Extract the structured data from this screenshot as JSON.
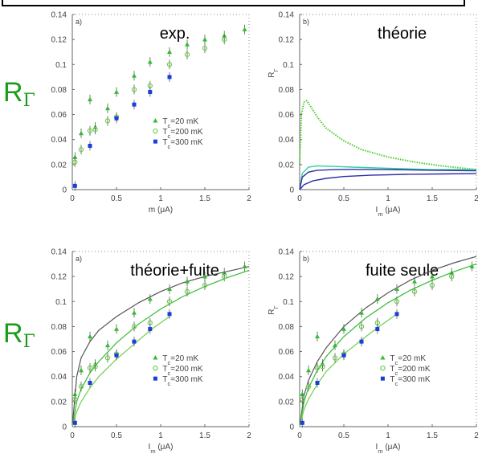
{
  "side_labels": {
    "top": "R",
    "bottom": "R",
    "subscript": "Γ"
  },
  "chart_data": [
    {
      "type": "scatter",
      "panel_letter": "a)",
      "title": "exp.",
      "xlabel": "m (μA)",
      "ylabel": "",
      "xlim": [
        0,
        2
      ],
      "ylim": [
        0,
        0.14
      ],
      "xticks": [
        "0",
        "0.5",
        "1",
        "1.5",
        "2"
      ],
      "yticks": [
        "0",
        "0.02",
        "0.04",
        "0.06",
        "0.08",
        "0.1",
        "0.12",
        "0.14"
      ],
      "legend": {
        "position": "center-right",
        "entries": [
          "T_c=20 mK",
          "T_c=200 mK",
          "T_c=300 mK"
        ]
      },
      "colors": [
        "#33bb33",
        "#6fcf4f",
        "#1a3fd6"
      ],
      "series": [
        {
          "name": "T_c=20 mK",
          "marker": "triangle",
          "x": [
            0.03,
            0.1,
            0.2,
            0.26,
            0.4,
            0.5,
            0.7,
            0.88,
            1.1,
            1.3,
            1.5,
            1.72,
            1.95
          ],
          "y": [
            0.026,
            0.045,
            0.072,
            0.05,
            0.065,
            0.078,
            0.091,
            0.102,
            0.11,
            0.116,
            0.12,
            0.123,
            0.128
          ]
        },
        {
          "name": "T_c=200 mK",
          "marker": "circle",
          "x": [
            0.03,
            0.1,
            0.2,
            0.26,
            0.4,
            0.5,
            0.7,
            0.88,
            1.1,
            1.3,
            1.5,
            1.72
          ],
          "y": [
            0.022,
            0.032,
            0.047,
            0.048,
            0.055,
            0.058,
            0.08,
            0.083,
            0.1,
            0.108,
            0.113,
            0.12
          ]
        },
        {
          "name": "T_c=300 mK",
          "marker": "square",
          "x": [
            0.03,
            0.2,
            0.5,
            0.7,
            0.88,
            1.1
          ],
          "y": [
            0.003,
            0.035,
            0.057,
            0.068,
            0.078,
            0.09
          ]
        }
      ]
    },
    {
      "type": "line",
      "panel_letter": "b)",
      "title": "théorie",
      "xlabel": "I_m (μA)",
      "ylabel": "R_Γ",
      "xlim": [
        0,
        2
      ],
      "ylim": [
        0,
        0.14
      ],
      "xticks": [
        "0",
        "0.5",
        "1",
        "1.5",
        "2"
      ],
      "yticks": [
        "0",
        "0.02",
        "0.04",
        "0.06",
        "0.08",
        "0.1",
        "0.12",
        "0.14"
      ],
      "colors": [
        "#4fcc2f",
        "#2fcfa0",
        "#2d2ea8"
      ],
      "series": [
        {
          "name": "T_c=20 mK",
          "style": "dotted",
          "x": [
            0,
            0.02,
            0.05,
            0.08,
            0.12,
            0.2,
            0.3,
            0.5,
            0.7,
            1.0,
            1.3,
            1.6,
            2.0
          ],
          "y": [
            0.02,
            0.06,
            0.07,
            0.071,
            0.067,
            0.058,
            0.049,
            0.039,
            0.032,
            0.026,
            0.022,
            0.019,
            0.016
          ]
        },
        {
          "name": "T_c=20 mK",
          "style": "solid",
          "x": [
            0,
            0.03,
            0.1,
            0.2,
            0.4,
            0.6,
            1.0,
            1.5,
            2.0
          ],
          "y": [
            0.0,
            0.013,
            0.018,
            0.019,
            0.0185,
            0.018,
            0.017,
            0.016,
            0.016
          ]
        },
        {
          "name": "T_c=200 mK",
          "style": "solid",
          "x": [
            0,
            0.03,
            0.1,
            0.2,
            0.4,
            0.6,
            1.0,
            1.5,
            2.0
          ],
          "y": [
            0.0,
            0.01,
            0.014,
            0.0155,
            0.016,
            0.0162,
            0.016,
            0.0155,
            0.015
          ]
        },
        {
          "name": "T_c=300 mK",
          "style": "solid",
          "x": [
            0,
            0.05,
            0.15,
            0.3,
            0.5,
            0.8,
            1.2,
            1.6,
            2.0
          ],
          "y": [
            0.0,
            0.004,
            0.007,
            0.009,
            0.0105,
            0.0115,
            0.0122,
            0.0125,
            0.0128
          ]
        }
      ]
    },
    {
      "type": "scatter",
      "panel_letter": "a)",
      "title": "théorie+fuite",
      "xlabel": "I_m (μA)",
      "ylabel": "",
      "xlim": [
        0,
        2
      ],
      "ylim": [
        0,
        0.14
      ],
      "xticks": [
        "0",
        "0.5",
        "1",
        "1.5",
        "2"
      ],
      "yticks": [
        "0",
        "0.02",
        "0.04",
        "0.06",
        "0.08",
        "0.1",
        "0.12",
        "0.14"
      ],
      "legend": {
        "position": "center-right",
        "entries": [
          "T_c=20 mK",
          "T_c=200 mK",
          "T_c=300 mK"
        ]
      },
      "colors": [
        "#33bb33",
        "#6fcf4f",
        "#1a3fd6"
      ],
      "series": [
        {
          "name": "T_c=20 mK",
          "marker": "triangle",
          "x": [
            0.03,
            0.1,
            0.2,
            0.26,
            0.4,
            0.5,
            0.7,
            0.88,
            1.1,
            1.3,
            1.5,
            1.72,
            1.95
          ],
          "y": [
            0.026,
            0.045,
            0.072,
            0.05,
            0.065,
            0.078,
            0.091,
            0.102,
            0.11,
            0.116,
            0.12,
            0.123,
            0.128
          ]
        },
        {
          "name": "T_c=200 mK",
          "marker": "circle",
          "x": [
            0.03,
            0.1,
            0.2,
            0.26,
            0.4,
            0.5,
            0.7,
            0.88,
            1.1,
            1.3,
            1.5,
            1.72
          ],
          "y": [
            0.022,
            0.032,
            0.047,
            0.048,
            0.055,
            0.058,
            0.08,
            0.083,
            0.1,
            0.108,
            0.113,
            0.12
          ]
        },
        {
          "name": "T_c=300 mK",
          "marker": "square",
          "x": [
            0.03,
            0.2,
            0.5,
            0.7,
            0.88,
            1.1
          ],
          "y": [
            0.003,
            0.035,
            0.057,
            0.068,
            0.078,
            0.09
          ]
        }
      ],
      "curves": [
        {
          "color": "#555555",
          "x": [
            0,
            0.05,
            0.1,
            0.2,
            0.3,
            0.5,
            0.75,
            1.0,
            1.25,
            1.5,
            1.75,
            2.0
          ],
          "y": [
            0.0,
            0.04,
            0.055,
            0.068,
            0.077,
            0.088,
            0.099,
            0.108,
            0.115,
            0.12,
            0.124,
            0.128
          ]
        },
        {
          "color": "#33bb33",
          "x": [
            0,
            0.05,
            0.1,
            0.2,
            0.3,
            0.5,
            0.75,
            1.0,
            1.25,
            1.5,
            1.75,
            2.0
          ],
          "y": [
            0.0,
            0.02,
            0.03,
            0.043,
            0.052,
            0.067,
            0.082,
            0.094,
            0.104,
            0.112,
            0.119,
            0.125
          ]
        },
        {
          "color": "#6fcf4f",
          "x": [
            0,
            0.05,
            0.1,
            0.2,
            0.3,
            0.5,
            0.75,
            0.9,
            1.1
          ],
          "y": [
            0.0,
            0.012,
            0.02,
            0.031,
            0.04,
            0.054,
            0.069,
            0.078,
            0.088
          ]
        }
      ]
    },
    {
      "type": "scatter",
      "panel_letter": "b)",
      "title": "fuite seule",
      "xlabel": "I_m (μA)",
      "ylabel": "R_Γ",
      "xlim": [
        0,
        2
      ],
      "ylim": [
        0,
        0.14
      ],
      "xticks": [
        "0",
        "0.5",
        "1",
        "1.5",
        "2"
      ],
      "yticks": [
        "0",
        "0.02",
        "0.04",
        "0.06",
        "0.08",
        "0.1",
        "0.12",
        "0.14"
      ],
      "legend": {
        "position": "center-right",
        "entries": [
          "T_c=20 mK",
          "T_c=200 mK",
          "T_c=300 mK"
        ]
      },
      "colors": [
        "#33bb33",
        "#6fcf4f",
        "#1a3fd6"
      ],
      "series": [
        {
          "name": "T_c=20 mK",
          "marker": "triangle",
          "x": [
            0.03,
            0.1,
            0.2,
            0.26,
            0.4,
            0.5,
            0.7,
            0.88,
            1.1,
            1.3,
            1.5,
            1.72,
            1.95
          ],
          "y": [
            0.026,
            0.045,
            0.072,
            0.05,
            0.065,
            0.078,
            0.091,
            0.102,
            0.11,
            0.116,
            0.12,
            0.123,
            0.128
          ]
        },
        {
          "name": "T_c=200 mK",
          "marker": "circle",
          "x": [
            0.03,
            0.1,
            0.2,
            0.26,
            0.4,
            0.5,
            0.7,
            0.88,
            1.1,
            1.3,
            1.5,
            1.72
          ],
          "y": [
            0.022,
            0.032,
            0.047,
            0.048,
            0.055,
            0.058,
            0.08,
            0.083,
            0.1,
            0.108,
            0.113,
            0.12
          ]
        },
        {
          "name": "T_c=300 mK",
          "marker": "square",
          "x": [
            0.03,
            0.2,
            0.5,
            0.7,
            0.88,
            1.1
          ],
          "y": [
            0.003,
            0.035,
            0.057,
            0.068,
            0.078,
            0.09
          ]
        }
      ],
      "curves": [
        {
          "color": "#555555",
          "x": [
            0,
            0.05,
            0.1,
            0.2,
            0.3,
            0.5,
            0.75,
            1.0,
            1.25,
            1.5,
            1.75,
            2.0
          ],
          "y": [
            0.0,
            0.025,
            0.037,
            0.052,
            0.063,
            0.08,
            0.095,
            0.107,
            0.117,
            0.125,
            0.131,
            0.136
          ]
        },
        {
          "color": "#33bb33",
          "x": [
            0,
            0.05,
            0.1,
            0.2,
            0.3,
            0.5,
            0.75,
            1.0,
            1.25,
            1.5,
            1.75,
            2.0
          ],
          "y": [
            0.0,
            0.02,
            0.031,
            0.045,
            0.056,
            0.072,
            0.087,
            0.099,
            0.109,
            0.117,
            0.124,
            0.13
          ]
        },
        {
          "color": "#6fcf4f",
          "x": [
            0,
            0.05,
            0.1,
            0.2,
            0.3,
            0.5,
            0.75,
            0.9,
            1.1
          ],
          "y": [
            0.0,
            0.014,
            0.022,
            0.034,
            0.044,
            0.058,
            0.072,
            0.08,
            0.09
          ]
        }
      ]
    }
  ]
}
